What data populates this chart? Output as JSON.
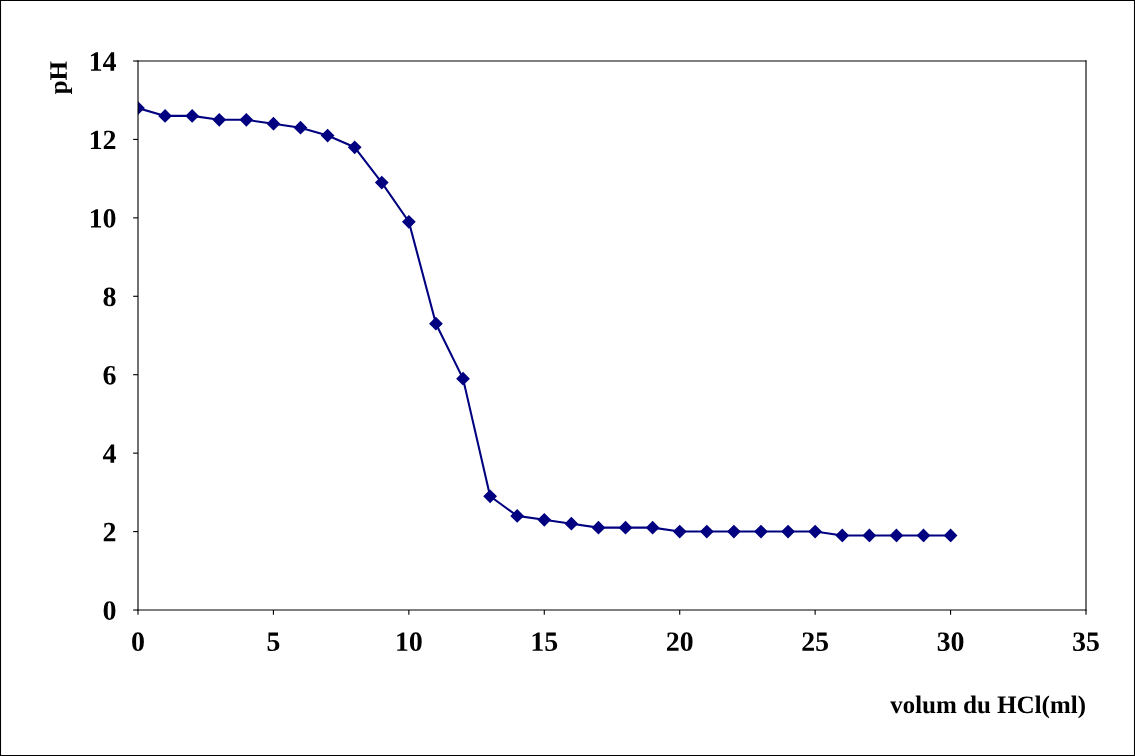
{
  "chart_data": {
    "type": "line",
    "xlabel": "volum du HCl(ml)",
    "ylabel": "pH",
    "x": [
      0,
      1,
      2,
      3,
      4,
      5,
      6,
      7,
      8,
      9,
      10,
      11,
      12,
      13,
      14,
      15,
      16,
      17,
      18,
      19,
      20,
      21,
      22,
      23,
      24,
      25,
      26,
      27,
      28,
      29,
      30
    ],
    "series": [
      {
        "color": "#000080",
        "values": [
          12.8,
          12.6,
          12.6,
          12.5,
          12.5,
          12.4,
          12.3,
          12.1,
          11.8,
          10.9,
          9.9,
          7.3,
          5.9,
          2.9,
          2.4,
          2.3,
          2.2,
          2.1,
          2.1,
          2.1,
          2.0,
          2.0,
          2.0,
          2.0,
          2.0,
          2.0,
          1.9,
          1.9,
          1.9,
          1.9,
          1.9
        ]
      }
    ],
    "xlim": [
      0,
      35
    ],
    "xticks": [
      0,
      5,
      10,
      15,
      20,
      25,
      30,
      35
    ],
    "ylim": [
      0,
      14
    ],
    "yticks": [
      0,
      2,
      4,
      6,
      8,
      10,
      12,
      14
    ],
    "grid": false,
    "legend": false,
    "marker": "diamond",
    "line_style": "solid"
  }
}
